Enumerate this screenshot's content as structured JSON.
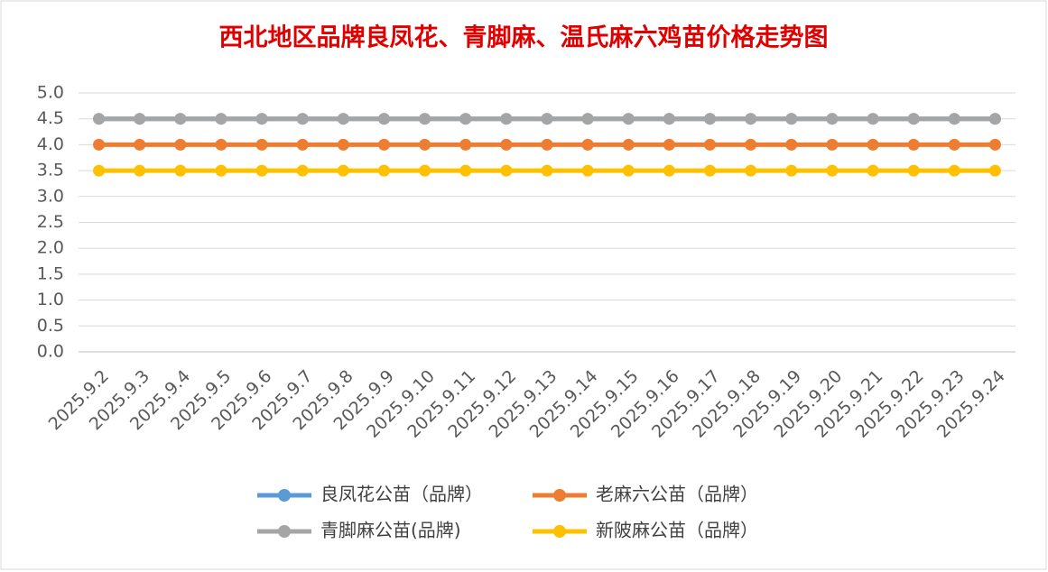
{
  "chart_data": {
    "type": "line",
    "title": "西北地区品牌良凤花、青脚麻、温氏麻六鸡苗价格走势图",
    "categories": [
      "2025.9.2",
      "2025.9.3",
      "2025.9.4",
      "2025.9.5",
      "2025.9.6",
      "2025.9.7",
      "2025.9.8",
      "2025.9.9",
      "2025.9.10",
      "2025.9.11",
      "2025.9.12",
      "2025.9.13",
      "2025.9.14",
      "2025.9.15",
      "2025.9.16",
      "2025.9.17",
      "2025.9.18",
      "2025.9.19",
      "2025.9.20",
      "2025.9.21",
      "2025.9.22",
      "2025.9.23",
      "2025.9.24"
    ],
    "series": [
      {
        "name": "良凤花公苗（品牌）",
        "color": "#5b9bd5",
        "values": [
          4.5,
          4.5,
          4.5,
          4.5,
          4.5,
          4.5,
          4.5,
          4.5,
          4.5,
          4.5,
          4.5,
          4.5,
          4.5,
          4.5,
          4.5,
          4.5,
          4.5,
          4.5,
          4.5,
          4.5,
          4.5,
          4.5,
          4.5
        ]
      },
      {
        "name": "老麻六公苗（品牌）",
        "color": "#ed7d31",
        "values": [
          4,
          4,
          4,
          4,
          4,
          4,
          4,
          4,
          4,
          4,
          4,
          4,
          4,
          4,
          4,
          4,
          4,
          4,
          4,
          4,
          4,
          4,
          4
        ]
      },
      {
        "name": "青脚麻公苗(品牌)",
        "color": "#a5a5a5",
        "values": [
          4.5,
          4.5,
          4.5,
          4.5,
          4.5,
          4.5,
          4.5,
          4.5,
          4.5,
          4.5,
          4.5,
          4.5,
          4.5,
          4.5,
          4.5,
          4.5,
          4.5,
          4.5,
          4.5,
          4.5,
          4.5,
          4.5,
          4.5
        ]
      },
      {
        "name": "新陂麻公苗（品牌）",
        "color": "#ffc000",
        "values": [
          3.5,
          3.5,
          3.5,
          3.5,
          3.5,
          3.5,
          3.5,
          3.5,
          3.5,
          3.5,
          3.5,
          3.5,
          3.5,
          3.5,
          3.5,
          3.5,
          3.5,
          3.5,
          3.5,
          3.5,
          3.5,
          3.5,
          3.5
        ]
      }
    ],
    "ylim": [
      0,
      5
    ],
    "yticks": [
      {
        "value": 0,
        "label": "0.0"
      },
      {
        "value": 0.5,
        "label": "0.5"
      },
      {
        "value": 1,
        "label": "1.0"
      },
      {
        "value": 1.5,
        "label": "1.5"
      },
      {
        "value": 2,
        "label": "2.0"
      },
      {
        "value": 2.5,
        "label": "2.5"
      },
      {
        "value": 3,
        "label": "3.0"
      },
      {
        "value": 3.5,
        "label": "3.5"
      },
      {
        "value": 4,
        "label": "4.0"
      },
      {
        "value": 4.5,
        "label": "4.5"
      },
      {
        "value": 5,
        "label": "5.0"
      }
    ],
    "grid": true,
    "legend": "bottom"
  }
}
